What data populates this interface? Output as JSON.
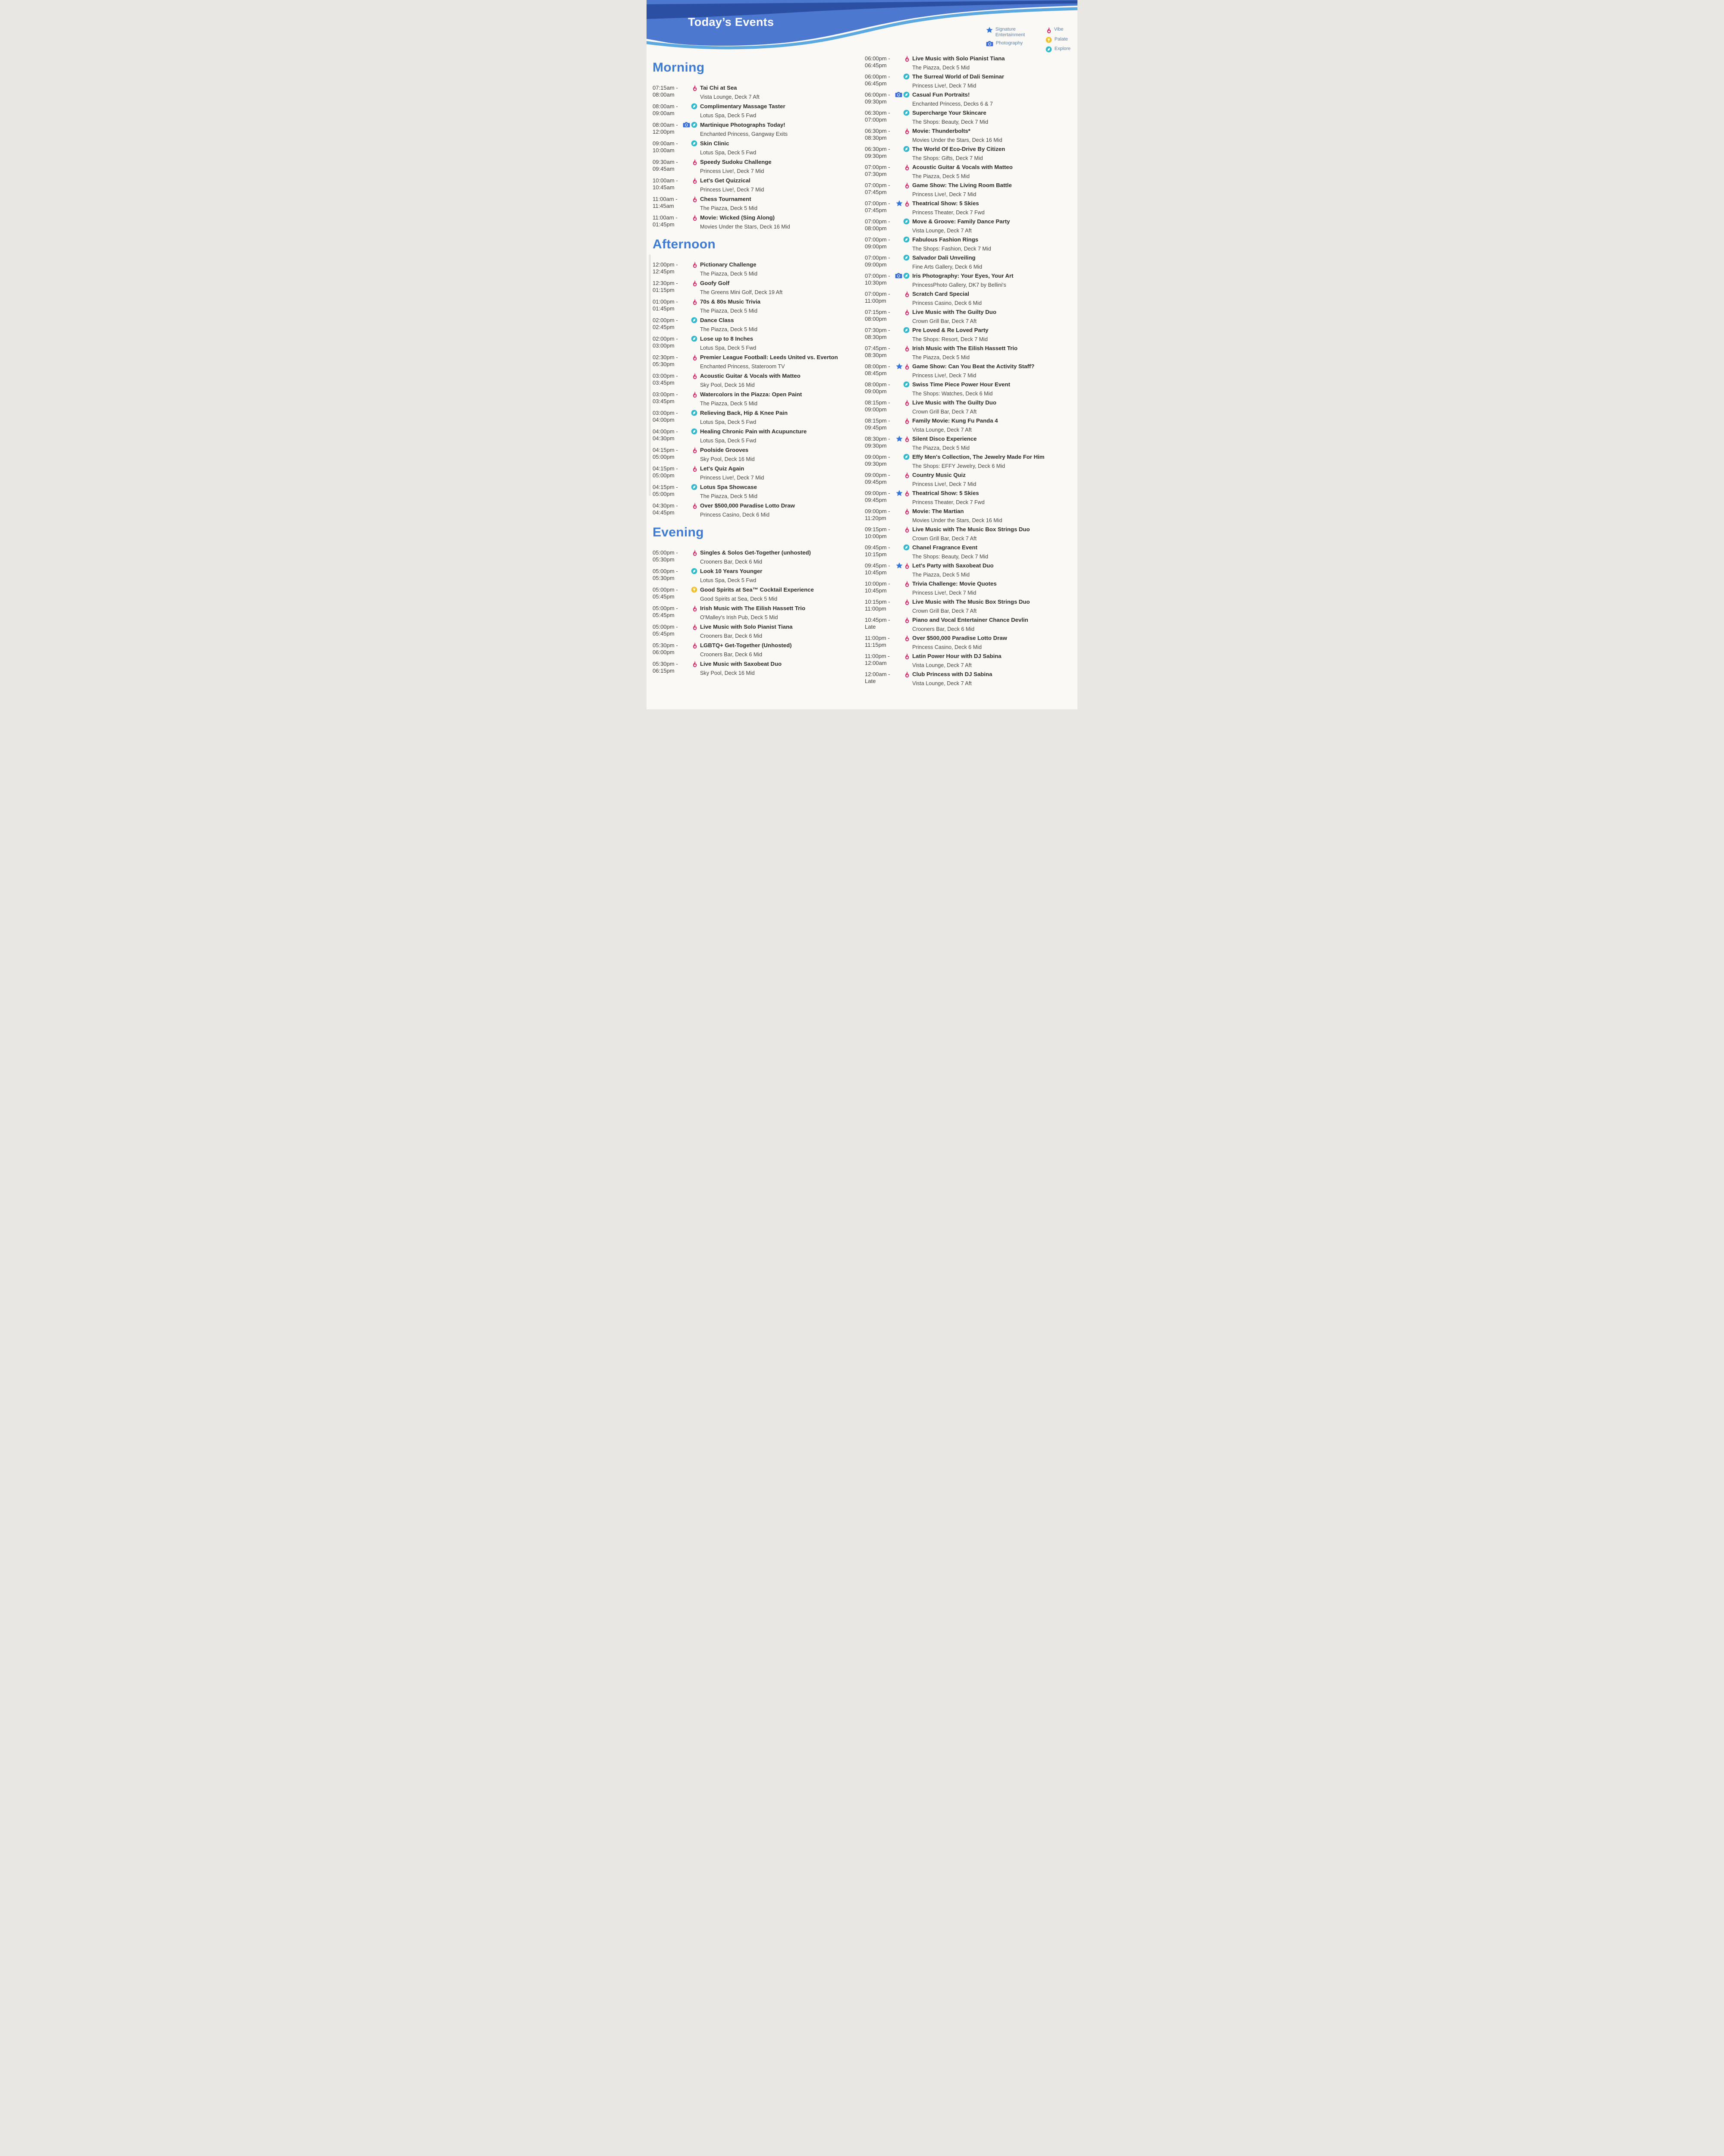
{
  "header": {
    "title": "Today’s Events"
  },
  "colors": {
    "accent_blue": "#3e7cd3",
    "signature": "#3577d8",
    "vibe": "#d6336f",
    "photography": "#3a6cd8",
    "palate": "#eec02f",
    "explore": "#2fb9ca",
    "legend_text": "#64809f"
  },
  "legend": {
    "columns": [
      [
        {
          "key": "signature",
          "label": "Signature Entertainment"
        },
        {
          "key": "photography",
          "label": "Photography"
        }
      ],
      [
        {
          "key": "vibe",
          "label": "Vibe"
        },
        {
          "key": "palate",
          "label": "Palate"
        },
        {
          "key": "explore",
          "label": "Explore"
        }
      ]
    ]
  },
  "schedule": {
    "left": [
      {
        "title": "Morning",
        "events": [
          {
            "start": "07:15am",
            "end": "08:00am",
            "icons": [
              "vibe"
            ],
            "title": "Tai Chi at Sea",
            "location": "Vista Lounge, Deck 7  Aft"
          },
          {
            "start": "08:00am",
            "end": "09:00am",
            "icons": [
              "explore"
            ],
            "title": "Complimentary Massage Taster",
            "location": "Lotus Spa, Deck 5  Fwd"
          },
          {
            "start": "08:00am",
            "end": "12:00pm",
            "icons": [
              "photography",
              "explore"
            ],
            "title": "Martinique Photographs Today!",
            "location": "Enchanted Princess, Gangway Exits"
          },
          {
            "start": "09:00am",
            "end": "10:00am",
            "icons": [
              "explore"
            ],
            "title": "Skin Clinic",
            "location": "Lotus Spa, Deck 5  Fwd"
          },
          {
            "start": "09:30am",
            "end": "09:45am",
            "icons": [
              "vibe"
            ],
            "title": "Speedy Sudoku Challenge",
            "location": "Princess Live!, Deck 7  Mid"
          },
          {
            "start": "10:00am",
            "end": "10:45am",
            "icons": [
              "vibe"
            ],
            "title": "Let's Get Quizzical",
            "location": "Princess Live!, Deck 7  Mid"
          },
          {
            "start": "11:00am",
            "end": "11:45am",
            "icons": [
              "vibe"
            ],
            "title": "Chess Tournament",
            "location": "The Piazza, Deck 5  Mid"
          },
          {
            "start": "11:00am",
            "end": "01:45pm",
            "icons": [
              "vibe"
            ],
            "title": "Movie: Wicked (Sing Along)",
            "location": "Movies Under the Stars, Deck 16  Mid"
          }
        ]
      },
      {
        "title": "Afternoon",
        "events": [
          {
            "start": "12:00pm",
            "end": "12:45pm",
            "icons": [
              "vibe"
            ],
            "title": "Pictionary Challenge",
            "location": "The Piazza, Deck 5  Mid"
          },
          {
            "start": "12:30pm",
            "end": "01:15pm",
            "icons": [
              "vibe"
            ],
            "title": "Goofy Golf",
            "location": "The Greens Mini Golf, Deck 19  Aft"
          },
          {
            "start": "01:00pm",
            "end": "01:45pm",
            "icons": [
              "vibe"
            ],
            "title": "70s & 80s Music Trivia",
            "location": "The Piazza, Deck 5  Mid"
          },
          {
            "start": "02:00pm",
            "end": "02:45pm",
            "icons": [
              "explore"
            ],
            "title": "Dance Class",
            "location": "The Piazza, Deck 5  Mid"
          },
          {
            "start": "02:00pm",
            "end": "03:00pm",
            "icons": [
              "explore"
            ],
            "title": "Lose up to 8 Inches",
            "location": "Lotus Spa, Deck 5  Fwd"
          },
          {
            "start": "02:30pm",
            "end": "05:30pm",
            "icons": [
              "vibe"
            ],
            "title": "Premier League Football: Leeds United vs. Everton",
            "location": "Enchanted Princess, Stateroom TV"
          },
          {
            "start": "03:00pm",
            "end": "03:45pm",
            "icons": [
              "vibe"
            ],
            "title": "Acoustic Guitar & Vocals with Matteo",
            "location": "Sky Pool, Deck 16  Mid"
          },
          {
            "start": "03:00pm",
            "end": "03:45pm",
            "icons": [
              "vibe"
            ],
            "title": "Watercolors in the Piazza: Open Paint",
            "location": "The Piazza, Deck 5  Mid"
          },
          {
            "start": "03:00pm",
            "end": "04:00pm",
            "icons": [
              "explore"
            ],
            "title": "Relieving Back, Hip & Knee Pain",
            "location": "Lotus Spa, Deck 5  Fwd"
          },
          {
            "start": "04:00pm",
            "end": "04:30pm",
            "icons": [
              "explore"
            ],
            "title": "Healing Chronic Pain with Acupuncture",
            "location": "Lotus Spa, Deck 5  Fwd"
          },
          {
            "start": "04:15pm",
            "end": "05:00pm",
            "icons": [
              "vibe"
            ],
            "title": "Poolside Grooves",
            "location": "Sky Pool, Deck 16  Mid"
          },
          {
            "start": "04:15pm",
            "end": "05:00pm",
            "icons": [
              "vibe"
            ],
            "title": "Let's Quiz Again",
            "location": "Princess Live!, Deck 7  Mid"
          },
          {
            "start": "04:15pm",
            "end": "05:00pm",
            "icons": [
              "explore"
            ],
            "title": "Lotus Spa Showcase",
            "location": "The Piazza, Deck 5  Mid"
          },
          {
            "start": "04:30pm",
            "end": "04:45pm",
            "icons": [
              "vibe"
            ],
            "title": "Over $500,000 Paradise Lotto Draw",
            "location": "Princess Casino, Deck 6  Mid"
          }
        ]
      },
      {
        "title": "Evening",
        "events": [
          {
            "start": "05:00pm",
            "end": "05:30pm",
            "icons": [
              "vibe"
            ],
            "title": "Singles & Solos Get-Together (unhosted)",
            "location": "Crooners Bar, Deck 6  Mid"
          },
          {
            "start": "05:00pm",
            "end": "05:30pm",
            "icons": [
              "explore"
            ],
            "title": "Look 10 Years Younger",
            "location": "Lotus Spa, Deck 5  Fwd"
          },
          {
            "start": "05:00pm",
            "end": "05:45pm",
            "icons": [
              "palate"
            ],
            "title": "Good Spirits at Sea™ Cocktail Experience",
            "location": "Good Spirits at Sea, Deck 5  Mid"
          },
          {
            "start": "05:00pm",
            "end": "05:45pm",
            "icons": [
              "vibe"
            ],
            "title": "Irish Music with The Eilish Hassett Trio",
            "location": "O'Malley's Irish Pub, Deck 5  Mid"
          },
          {
            "start": "05:00pm",
            "end": "05:45pm",
            "icons": [
              "vibe"
            ],
            "title": "Live Music with Solo Pianist Tiana",
            "location": "Crooners Bar, Deck 6  Mid"
          },
          {
            "start": "05:30pm",
            "end": "06:00pm",
            "icons": [
              "vibe"
            ],
            "title": "LGBTQ+ Get-Together (Unhosted)",
            "location": "Crooners Bar, Deck 6  Mid"
          },
          {
            "start": "05:30pm",
            "end": "06:15pm",
            "icons": [
              "vibe"
            ],
            "title": "Live Music with Saxobeat Duo",
            "location": "Sky Pool, Deck 16  Mid"
          }
        ]
      }
    ],
    "right": [
      {
        "title": "",
        "events": [
          {
            "start": "06:00pm",
            "end": "06:45pm",
            "icons": [
              "vibe"
            ],
            "title": "Live Music with Solo Pianist Tiana",
            "location": "The Piazza, Deck 5  Mid"
          },
          {
            "start": "06:00pm",
            "end": "06:45pm",
            "icons": [
              "explore"
            ],
            "title": "The Surreal World of Dali Seminar",
            "location": "Princess Live!, Deck 7  Mid"
          },
          {
            "start": "06:00pm",
            "end": "09:30pm",
            "icons": [
              "photography",
              "explore"
            ],
            "title": "Casual Fun Portraits!",
            "location": "Enchanted Princess, Decks 6 & 7"
          },
          {
            "start": "06:30pm",
            "end": "07:00pm",
            "icons": [
              "explore"
            ],
            "title": "Supercharge Your Skincare",
            "location": "The Shops: Beauty, Deck 7  Mid"
          },
          {
            "start": "06:30pm",
            "end": "08:30pm",
            "icons": [
              "vibe"
            ],
            "title": "Movie: Thunderbolts*",
            "location": "Movies Under the Stars, Deck 16  Mid"
          },
          {
            "start": "06:30pm",
            "end": "09:30pm",
            "icons": [
              "explore"
            ],
            "title": "The World Of Eco-Drive By Citizen",
            "location": "The Shops: Gifts, Deck 7  Mid"
          },
          {
            "start": "07:00pm",
            "end": "07:30pm",
            "icons": [
              "vibe"
            ],
            "title": "Acoustic Guitar & Vocals with Matteo",
            "location": "The Piazza, Deck 5  Mid"
          },
          {
            "start": "07:00pm",
            "end": "07:45pm",
            "icons": [
              "vibe"
            ],
            "title": "Game Show: The Living Room Battle",
            "location": "Princess Live!, Deck 7  Mid"
          },
          {
            "start": "07:00pm",
            "end": "07:45pm",
            "icons": [
              "signature",
              "vibe"
            ],
            "title": "Theatrical Show: 5 Skies",
            "location": "Princess Theater, Deck 7  Fwd"
          },
          {
            "start": "07:00pm",
            "end": "08:00pm",
            "icons": [
              "explore"
            ],
            "title": "Move & Groove: Family Dance Party",
            "location": "Vista Lounge, Deck 7  Aft"
          },
          {
            "start": "07:00pm",
            "end": "09:00pm",
            "icons": [
              "explore"
            ],
            "title": "Fabulous Fashion Rings",
            "location": "The Shops: Fashion, Deck 7  Mid"
          },
          {
            "start": "07:00pm",
            "end": "09:00pm",
            "icons": [
              "explore"
            ],
            "title": "Salvador Dali Unveiling",
            "location": "Fine Arts Gallery, Deck 6  Mid"
          },
          {
            "start": "07:00pm",
            "end": "10:30pm",
            "icons": [
              "photography",
              "explore"
            ],
            "title": "Iris Photography: Your Eyes, Your Art",
            "location": "PrincessPhoto Gallery, DK7 by Bellini's"
          },
          {
            "start": "07:00pm",
            "end": "11:00pm",
            "icons": [
              "vibe"
            ],
            "title": "Scratch Card Special",
            "location": "Princess Casino, Deck 6  Mid"
          },
          {
            "start": "07:15pm",
            "end": "08:00pm",
            "icons": [
              "vibe"
            ],
            "title": "Live Music with The Guilty Duo",
            "location": "Crown Grill Bar, Deck 7  Aft"
          },
          {
            "start": "07:30pm",
            "end": "08:30pm",
            "icons": [
              "explore"
            ],
            "title": "Pre Loved & Re Loved Party",
            "location": "The Shops: Resort, Deck 7  Mid"
          },
          {
            "start": "07:45pm",
            "end": "08:30pm",
            "icons": [
              "vibe"
            ],
            "title": "Irish Music with The Eilish Hassett Trio",
            "location": "The Piazza, Deck 5  Mid"
          },
          {
            "start": "08:00pm",
            "end": "08:45pm",
            "icons": [
              "signature",
              "vibe"
            ],
            "title": "Game Show: Can You Beat the Activity Staff?",
            "location": "Princess Live!, Deck 7  Mid"
          },
          {
            "start": "08:00pm",
            "end": "09:00pm",
            "icons": [
              "explore"
            ],
            "title": "Swiss Time Piece Power Hour Event",
            "location": "The Shops: Watches, Deck 6  Mid"
          },
          {
            "start": "08:15pm",
            "end": "09:00pm",
            "icons": [
              "vibe"
            ],
            "title": "Live Music with The Guilty Duo",
            "location": "Crown Grill Bar, Deck 7  Aft"
          },
          {
            "start": "08:15pm",
            "end": "09:45pm",
            "icons": [
              "vibe"
            ],
            "title": "Family Movie: Kung Fu Panda 4",
            "location": "Vista Lounge, Deck 7  Aft"
          },
          {
            "start": "08:30pm",
            "end": "09:30pm",
            "icons": [
              "signature",
              "vibe"
            ],
            "title": "Silent Disco Experience",
            "location": "The Piazza, Deck 5  Mid"
          },
          {
            "start": "09:00pm",
            "end": "09:30pm",
            "icons": [
              "explore"
            ],
            "title": "Effy Men's Collection, The Jewelry Made For Him",
            "location": "The Shops: EFFY Jewelry, Deck 6  Mid"
          },
          {
            "start": "09:00pm",
            "end": "09:45pm",
            "icons": [
              "vibe"
            ],
            "title": "Country Music Quiz",
            "location": "Princess Live!, Deck 7  Mid"
          },
          {
            "start": "09:00pm",
            "end": "09:45pm",
            "icons": [
              "signature",
              "vibe"
            ],
            "title": "Theatrical Show: 5 Skies",
            "location": "Princess Theater, Deck 7  Fwd"
          },
          {
            "start": "09:00pm",
            "end": "11:20pm",
            "icons": [
              "vibe"
            ],
            "title": "Movie: The Martian",
            "location": "Movies Under the Stars, Deck 16  Mid"
          },
          {
            "start": "09:15pm",
            "end": "10:00pm",
            "icons": [
              "vibe"
            ],
            "title": "Live Music with The Music Box Strings Duo",
            "location": "Crown Grill Bar, Deck 7  Aft"
          },
          {
            "start": "09:45pm",
            "end": "10:15pm",
            "icons": [
              "explore"
            ],
            "title": "Chanel Fragrance Event",
            "location": "The Shops: Beauty, Deck 7  Mid"
          },
          {
            "start": "09:45pm",
            "end": "10:45pm",
            "icons": [
              "signature",
              "vibe"
            ],
            "title": "Let's Party with Saxobeat Duo",
            "location": "The Piazza, Deck 5  Mid"
          },
          {
            "start": "10:00pm",
            "end": "10:45pm",
            "icons": [
              "vibe"
            ],
            "title": "Trivia Challenge: Movie Quotes",
            "location": "Princess Live!, Deck 7  Mid"
          },
          {
            "start": "10:15pm",
            "end": "11:00pm",
            "icons": [
              "vibe"
            ],
            "title": "Live Music with The Music Box Strings Duo",
            "location": "Crown Grill Bar, Deck 7  Aft"
          },
          {
            "start": "10:45pm",
            "end": "Late",
            "icons": [
              "vibe"
            ],
            "title": "Piano and Vocal Entertainer Chance Devlin",
            "location": "Crooners Bar, Deck 6  Mid"
          },
          {
            "start": "11:00pm",
            "end": "11:15pm",
            "icons": [
              "vibe"
            ],
            "title": "Over $500,000 Paradise Lotto Draw",
            "location": "Princess Casino, Deck 6  Mid"
          },
          {
            "start": "11:00pm",
            "end": "12:00am",
            "icons": [
              "vibe"
            ],
            "title": "Latin Power Hour with DJ Sabina",
            "location": "Vista Lounge, Deck 7  Aft"
          },
          {
            "start": "12:00am",
            "end": "Late",
            "icons": [
              "vibe"
            ],
            "title": "Club Princess with DJ Sabina",
            "location": "Vista Lounge, Deck 7  Aft"
          }
        ]
      }
    ]
  }
}
